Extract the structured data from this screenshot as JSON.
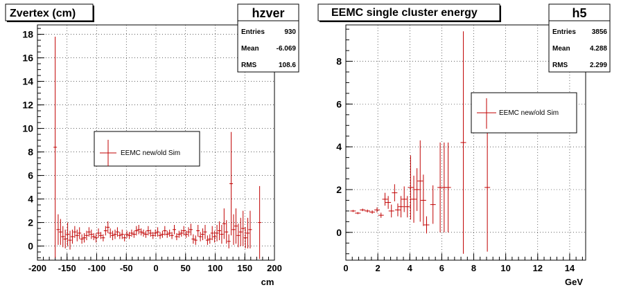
{
  "chart_data": [
    {
      "type": "scatter",
      "title": "Zvertex (cm)",
      "xlabel": "cm",
      "ylabel": "",
      "xlim": [
        -200,
        200
      ],
      "ylim": [
        -1.2,
        18.8
      ],
      "xticks": [
        "-200",
        "-150",
        "-100",
        "-50",
        "0",
        "50",
        "100",
        "150",
        "200"
      ],
      "yticks": [
        "0",
        "2",
        "4",
        "6",
        "8",
        "10",
        "12",
        "14",
        "16",
        "18"
      ],
      "grid": true,
      "legend": "center-left",
      "color": "#c00000",
      "stats": {
        "name": "hzver",
        "entries_label": "Entries",
        "entries": "930",
        "mean_label": "Mean",
        "mean": "-6.069",
        "rms_label": "RMS",
        "rms": "108.6"
      },
      "series": [
        {
          "name": "EEMC new/old Sim",
          "x": [
            -170,
            -165,
            -161,
            -157,
            -153,
            -149,
            -145,
            -141,
            -137,
            -133,
            -129,
            -125,
            -121,
            -117,
            -113,
            -109,
            -105,
            -101,
            -97,
            -93,
            -89,
            -85,
            -81,
            -77,
            -73,
            -69,
            -65,
            -61,
            -57,
            -53,
            -49,
            -45,
            -41,
            -37,
            -33,
            -29,
            -25,
            -21,
            -17,
            -13,
            -9,
            -5,
            -1,
            3,
            7,
            11,
            15,
            19,
            23,
            27,
            31,
            35,
            39,
            43,
            47,
            51,
            55,
            59,
            63,
            67,
            71,
            75,
            79,
            83,
            87,
            91,
            95,
            99,
            103,
            107,
            111,
            115,
            119,
            123,
            127,
            131,
            135,
            139,
            143,
            147,
            151,
            155,
            159,
            175
          ],
          "y": [
            8.4,
            1.4,
            1.2,
            0.8,
            0.6,
            1.0,
            0.5,
            0.8,
            1.2,
            0.9,
            1.1,
            0.6,
            0.7,
            0.9,
            1.2,
            1.0,
            0.8,
            0.7,
            1.1,
            0.9,
            0.7,
            1.3,
            1.6,
            1.1,
            0.9,
            1.0,
            1.2,
            0.9,
            1.0,
            0.7,
            1.0,
            0.9,
            1.1,
            1.0,
            1.3,
            1.4,
            1.2,
            1.1,
            1.0,
            1.3,
            1.1,
            0.9,
            1.1,
            1.2,
            0.9,
            1.0,
            1.3,
            1.0,
            1.1,
            0.9,
            1.4,
            0.8,
            1.0,
            1.1,
            1.3,
            1.0,
            1.2,
            1.4,
            0.6,
            0.5,
            1.3,
            0.8,
            1.0,
            1.2,
            0.5,
            0.6,
            1.1,
            0.8,
            1.1,
            1.3,
            1.0,
            1.9,
            1.2,
            0.4,
            5.3,
            1.4,
            1.7,
            0.9,
            1.2,
            1.5,
            0.7,
            1.1,
            1.4,
            2.0
          ],
          "yerr": [
            9.4,
            1.3,
            1.1,
            0.9,
            0.8,
            1.0,
            0.8,
            0.6,
            0.5,
            0.5,
            0.5,
            0.4,
            0.4,
            0.4,
            0.4,
            0.4,
            0.3,
            0.4,
            0.4,
            0.3,
            0.3,
            0.4,
            0.5,
            0.4,
            0.4,
            0.4,
            0.4,
            0.3,
            0.4,
            0.3,
            0.3,
            0.3,
            0.3,
            0.3,
            0.4,
            0.4,
            0.3,
            0.3,
            0.3,
            0.4,
            0.3,
            0.3,
            0.3,
            0.4,
            0.3,
            0.3,
            0.4,
            0.3,
            0.3,
            0.3,
            0.4,
            0.3,
            0.3,
            0.3,
            0.4,
            0.3,
            0.4,
            0.5,
            0.4,
            0.4,
            0.5,
            0.4,
            0.5,
            0.6,
            0.4,
            0.4,
            0.6,
            0.5,
            0.7,
            0.8,
            0.8,
            1.3,
            1.0,
            0.6,
            4.4,
            1.3,
            1.5,
            1.0,
            1.2,
            1.5,
            0.9,
            1.3,
            1.6,
            3.1
          ]
        }
      ]
    },
    {
      "type": "scatter",
      "title": "EEMC single cluster energy",
      "xlabel": "GeV",
      "ylabel": "",
      "xlim": [
        0,
        15
      ],
      "ylim": [
        -1.3,
        9.7
      ],
      "xticks": [
        "0",
        "2",
        "4",
        "6",
        "8",
        "10",
        "12",
        "14"
      ],
      "yticks": [
        "0",
        "2",
        "4",
        "6",
        "8"
      ],
      "grid": true,
      "legend": "center-right",
      "color": "#c00000",
      "stats": {
        "name": "h5",
        "entries_label": "Entries",
        "entries": "3856",
        "mean_label": "Mean",
        "mean": "4.288",
        "rms_label": "RMS",
        "rms": "2.299"
      },
      "series": [
        {
          "name": "EEMC new/old Sim",
          "x": [
            0.45,
            0.75,
            1.05,
            1.35,
            1.65,
            1.95,
            2.2,
            2.45,
            2.65,
            2.85,
            3.05,
            3.25,
            3.45,
            3.65,
            3.85,
            4.05,
            4.25,
            4.45,
            4.65,
            4.85,
            5.05,
            5.45,
            5.9,
            6.15,
            6.4,
            7.35,
            8.85
          ],
          "y": [
            1.0,
            0.9,
            1.05,
            1.0,
            0.95,
            1.05,
            0.8,
            1.55,
            1.4,
            1.0,
            1.85,
            1.05,
            1.2,
            1.55,
            1.2,
            2.1,
            1.55,
            2.0,
            2.4,
            1.5,
            0.35,
            1.3,
            2.1,
            2.1,
            2.1,
            4.2,
            2.1
          ],
          "yerr": [
            0.05,
            0.05,
            0.06,
            0.07,
            0.08,
            0.12,
            0.12,
            0.3,
            0.3,
            0.3,
            0.4,
            0.3,
            0.5,
            0.6,
            0.5,
            1.5,
            1.1,
            1.0,
            1.9,
            1.2,
            0.4,
            0.9,
            2.1,
            2.1,
            2.1,
            5.2,
            3.0
          ]
        }
      ]
    }
  ]
}
